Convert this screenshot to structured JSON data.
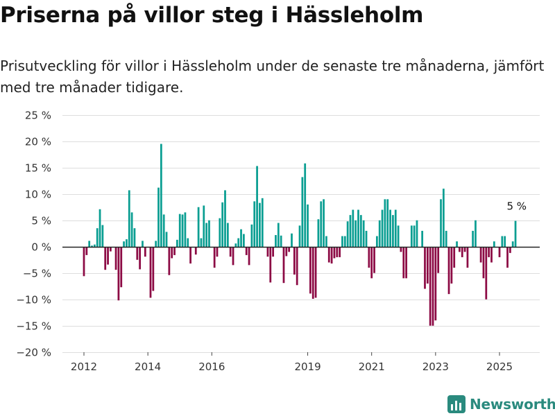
{
  "title": "Priserna på villor steg i Hässleholm",
  "subtitle": "Prisutveckling för villor i Hässleholm under de senaste tre månaderna, jämfört med tre månader tidigare.",
  "brand": {
    "name": "Newsworthy"
  },
  "colors": {
    "positive": "#0a9e92",
    "negative": "#8c0a44",
    "brand": "#2a8a7e",
    "grid": "#dddddd"
  },
  "chart_data": {
    "type": "bar",
    "xlabel": "",
    "ylabel": "",
    "ylim": [
      -20,
      25
    ],
    "y_ticks": [
      25,
      20,
      15,
      10,
      5,
      0,
      -5,
      -10,
      -15,
      -20
    ],
    "y_tick_labels": [
      "25 %",
      "20 %",
      "15 %",
      "10 %",
      "5 %",
      "0 %",
      "−5 %",
      "−10 %",
      "−15 %",
      "−20 %"
    ],
    "x_ticks": [
      "2012",
      "2014",
      "2016",
      "2019",
      "2021",
      "2023",
      "2025"
    ],
    "grid": "horizontal",
    "first_month": "2012-01",
    "values": [
      -5.5,
      -1.5,
      1.2,
      0.3,
      0.5,
      3.6,
      7.2,
      4.2,
      -4.3,
      -3.3,
      -0.8,
      0,
      -4.3,
      -10.1,
      -7.6,
      1.1,
      1.5,
      10.8,
      6.6,
      3.6,
      -2.4,
      -4.2,
      1.2,
      -1.8,
      0,
      -9.6,
      -8.3,
      1.2,
      11.3,
      19.6,
      6.2,
      2.9,
      -5.3,
      -2.1,
      -1.5,
      1.4,
      6.3,
      6.2,
      6.6,
      1.7,
      -3.1,
      0,
      -1.4,
      7.6,
      1.7,
      7.9,
      4.6,
      5.1,
      0,
      -3.9,
      -1.8,
      5.5,
      8.5,
      10.8,
      4.6,
      -1.8,
      -3.4,
      0.7,
      1.7,
      3.4,
      2.5,
      -1.5,
      -3.4,
      4.3,
      8.7,
      15.4,
      8.4,
      9.3,
      0,
      -1.8,
      -6.7,
      -1.8,
      2.3,
      4.6,
      2.2,
      -6.8,
      -1.7,
      -0.9,
      2.6,
      -5.2,
      -7.2,
      4.1,
      13.3,
      15.9,
      8.1,
      -8.8,
      -9.8,
      -9.6,
      5.3,
      8.7,
      9.1,
      2.1,
      -2.9,
      -3.1,
      -2.1,
      -1.9,
      -1.9,
      2.1,
      2.1,
      4.9,
      6.1,
      7.1,
      5.1,
      7.1,
      6.1,
      5.1,
      3.1,
      -3.9,
      -5.9,
      -4.9,
      2.1,
      5.1,
      7.1,
      9.1,
      9.1,
      7.1,
      6.1,
      7.1,
      4.1,
      -0.9,
      -5.9,
      -5.9,
      0,
      4.1,
      4.1,
      5.1,
      0,
      3.1,
      -7.9,
      -6.9,
      -14.9,
      -14.9,
      -13.9,
      -4.9,
      9.1,
      11.1,
      3.1,
      -8.9,
      -6.9,
      -3.9,
      1.1,
      -0.9,
      -1.9,
      -0.9,
      -3.9,
      0,
      3.1,
      5.1,
      0,
      -2.9,
      -5.9,
      -9.9,
      -1.9,
      -2.9,
      1.1,
      0,
      -1.9,
      2.1,
      2.1,
      -3.9,
      -1.1,
      1.1,
      5.0
    ],
    "annotation": {
      "label": "5 %",
      "value": 5.0
    }
  }
}
